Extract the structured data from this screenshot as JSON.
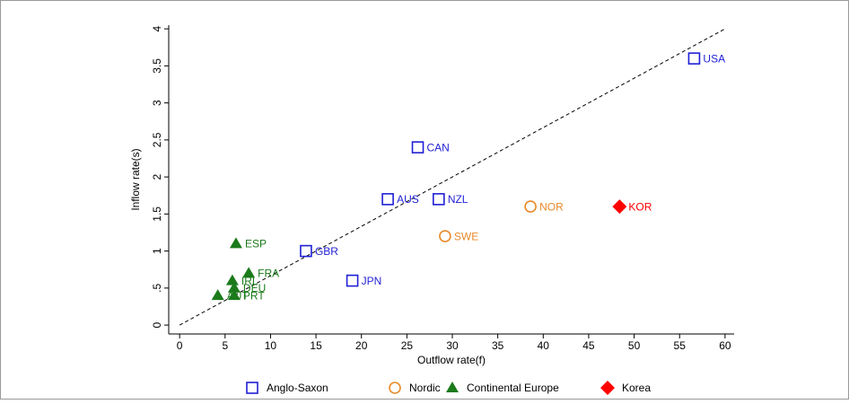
{
  "chart_data": {
    "type": "scatter",
    "x_label": "Outflow rate(f)",
    "y_label": "Inflow rate(s)",
    "xlim": [
      -1.2,
      61
    ],
    "ylim": [
      -0.12,
      4.05
    ],
    "xticks": [
      0,
      5,
      10,
      15,
      20,
      25,
      30,
      35,
      40,
      45,
      50,
      55,
      60
    ],
    "yticks": [
      0,
      {
        "value": 0.5,
        "label": ".5"
      },
      1,
      1.5,
      2,
      2.5,
      3,
      3.5,
      4
    ],
    "reference_line": {
      "x": [
        0,
        60
      ],
      "y": [
        0,
        4
      ]
    },
    "series": [
      {
        "name": "Anglo-Saxon",
        "color": "#1f1fd6",
        "marker": "square",
        "x": [
          56.6,
          26.2,
          22.9,
          28.5,
          13.9,
          19.0
        ],
        "values": [
          3.6,
          2.4,
          1.7,
          1.7,
          1.0,
          0.6
        ],
        "labels": [
          "USA",
          "CAN",
          "AUS",
          "NZL",
          "GBR",
          "JPN"
        ]
      },
      {
        "name": "Nordic",
        "color": "#e8892a",
        "marker": "circle",
        "x": [
          38.6,
          29.2
        ],
        "values": [
          1.6,
          1.2
        ],
        "labels": [
          "NOR",
          "SWE"
        ]
      },
      {
        "name": "Continental Europe",
        "color": "#1b7a1b",
        "marker": "triangle",
        "x": [
          6.2,
          7.6,
          5.8,
          6.0,
          4.2,
          6.0
        ],
        "values": [
          1.1,
          0.7,
          0.6,
          0.5,
          0.4,
          0.4
        ],
        "labels": [
          "ESP",
          "FRA",
          "IRL",
          "DEU",
          "AUT",
          "PRT"
        ]
      },
      {
        "name": "Korea",
        "color": "#ff0000",
        "marker": "diamond",
        "x": [
          48.4
        ],
        "values": [
          1.6
        ],
        "labels": [
          "KOR"
        ]
      }
    ]
  }
}
